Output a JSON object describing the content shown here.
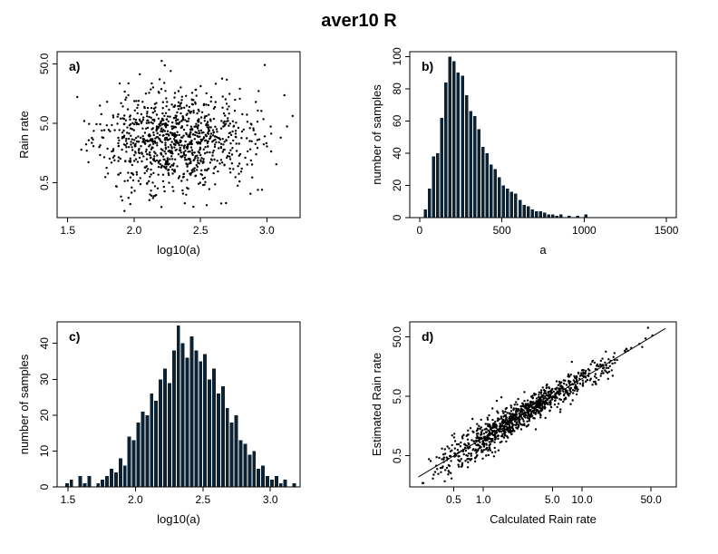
{
  "title": "aver10 R",
  "background": "#ffffff",
  "point_color": "#000000",
  "chart_data": [
    {
      "id": "a",
      "type": "scatter",
      "panel_label": "a)",
      "xlabel": "log10(a)",
      "ylabel": "Rain rate",
      "xscale": "linear",
      "yscale": "log",
      "xlim": [
        1.42,
        3.25
      ],
      "ylim": [
        0.13,
        80
      ],
      "xticks": [
        1.5,
        2.0,
        2.5,
        3.0
      ],
      "xtick_labels": [
        "1.5",
        "2.0",
        "2.5",
        "3.0"
      ],
      "yticks": [
        0.5,
        5.0,
        50.0
      ],
      "ytick_labels": [
        "0.5",
        "5.0",
        "50.0"
      ],
      "n_points": 1000,
      "seed": 11,
      "x_dist": {
        "type": "normal",
        "mean": 2.32,
        "sd": 0.28,
        "min": 1.45,
        "max": 3.2
      },
      "y_dist": {
        "type": "lognormal10",
        "log_mean": 0.42,
        "log_sd": 0.42,
        "min": 0.16,
        "max": 65
      }
    },
    {
      "id": "b",
      "type": "histogram",
      "panel_label": "b)",
      "xlabel": "a",
      "ylabel": "number of samples",
      "xscale": "linear",
      "yscale": "linear",
      "xlim": [
        -60,
        1560
      ],
      "ylim": [
        0,
        103
      ],
      "xticks": [
        0,
        500,
        1000,
        1500
      ],
      "xtick_labels": [
        "0",
        "500",
        "1000",
        "1500"
      ],
      "yticks": [
        0,
        20,
        40,
        60,
        80,
        100
      ],
      "ytick_labels": [
        "0",
        "20",
        "40",
        "60",
        "80",
        "100"
      ],
      "bin_start": 25,
      "bin_width": 25,
      "values": [
        5,
        18,
        38,
        40,
        62,
        84,
        100,
        97,
        90,
        88,
        76,
        66,
        63,
        55,
        44,
        40,
        33,
        30,
        25,
        20,
        18,
        16,
        15,
        11,
        8,
        7,
        5,
        4,
        4,
        3,
        2,
        2,
        1,
        2,
        0,
        1,
        0,
        1,
        0,
        2
      ],
      "bar_color": "#0c2233"
    },
    {
      "id": "c",
      "type": "histogram",
      "panel_label": "c)",
      "xlabel": "log10(a)",
      "ylabel": "number of samples",
      "xscale": "linear",
      "yscale": "linear",
      "xlim": [
        1.42,
        3.22
      ],
      "ylim": [
        0,
        46
      ],
      "xticks": [
        1.5,
        2.0,
        2.5,
        3.0
      ],
      "xtick_labels": [
        "1.5",
        "2.0",
        "2.5",
        "3.0"
      ],
      "yticks": [
        0,
        10,
        20,
        30,
        40
      ],
      "ytick_labels": [
        "0",
        "10",
        "20",
        "30",
        "40"
      ],
      "bin_start": 1.48,
      "bin_width": 0.033,
      "values": [
        1,
        2,
        0,
        3,
        1,
        3,
        0,
        1,
        2,
        3,
        5,
        4,
        8,
        6,
        14,
        13,
        18,
        21,
        20,
        26,
        24,
        30,
        33,
        29,
        38,
        45,
        40,
        36,
        42,
        38,
        35,
        37,
        30,
        33,
        26,
        28,
        22,
        18,
        20,
        13,
        12,
        9,
        10,
        5,
        6,
        3,
        2,
        3,
        1,
        2,
        0,
        1
      ],
      "bar_color": "#0c2233"
    },
    {
      "id": "d",
      "type": "scatter",
      "panel_label": "d)",
      "xlabel": "Calculated Rain rate",
      "ylabel": "Estimated Rain rate",
      "xscale": "log",
      "yscale": "log",
      "xlim": [
        0.18,
        90
      ],
      "ylim": [
        0.15,
        90
      ],
      "xticks": [
        0.5,
        1.0,
        5.0,
        10.0,
        50.0
      ],
      "xtick_labels": [
        "0.5",
        "1.0",
        "5.0",
        "10.0",
        "50.0"
      ],
      "yticks": [
        0.5,
        5.0,
        50.0
      ],
      "ytick_labels": [
        "0.5",
        "5.0",
        "50.0"
      ],
      "n_points": 1000,
      "seed": 77,
      "x_dist": {
        "type": "lognormal10",
        "log_mean": 0.38,
        "log_sd": 0.45,
        "min": 0.2,
        "max": 70
      },
      "noise_sd": 0.11,
      "line": {
        "slope": 1,
        "intercept": 0,
        "from": 0.22,
        "to": 70
      }
    }
  ]
}
